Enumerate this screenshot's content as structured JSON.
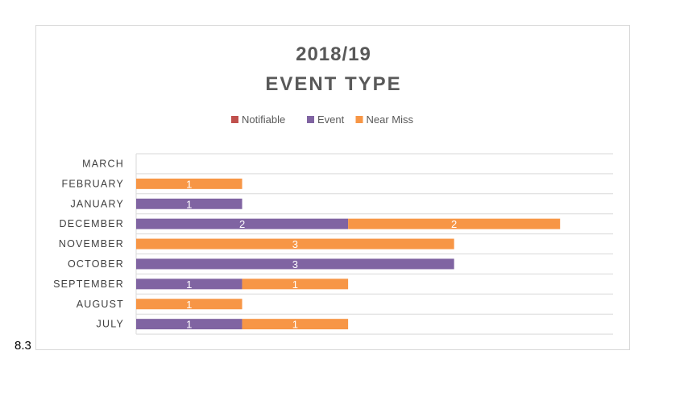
{
  "page": {
    "section_number": "8.3"
  },
  "chart_data": {
    "type": "bar",
    "orientation": "horizontal",
    "stacked": true,
    "title_line1": "2018/19",
    "title_line2": "EVENT TYPE",
    "categories": [
      "JULY",
      "AUGUST",
      "SEPTEMBER",
      "OCTOBER",
      "NOVEMBER",
      "DECEMBER",
      "JANUARY",
      "FEBRUARY",
      "MARCH"
    ],
    "series": [
      {
        "name": "Notifiable",
        "color": "#c0504d",
        "values": [
          0,
          0,
          0,
          0,
          0,
          0,
          0,
          0,
          0
        ]
      },
      {
        "name": "Event",
        "color": "#8064a2",
        "values": [
          1,
          0,
          1,
          3,
          0,
          2,
          1,
          0,
          0
        ]
      },
      {
        "name": "Near Miss",
        "color": "#f79646",
        "values": [
          1,
          1,
          1,
          0,
          3,
          2,
          0,
          1,
          0
        ]
      }
    ],
    "xlim": [
      0,
      4.5
    ],
    "grid": true,
    "legend_position": "top"
  }
}
